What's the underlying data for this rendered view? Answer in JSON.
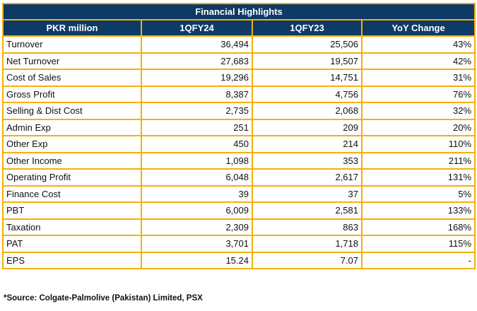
{
  "table": {
    "title": "Financial Highlights",
    "headers": [
      "PKR million",
      "1QFY24",
      "1QFY23",
      "YoY Change"
    ],
    "rows": [
      {
        "label": "Turnover",
        "fy24": "36,494",
        "fy23": "25,506",
        "yoy": "43%"
      },
      {
        "label": "Net Turnover",
        "fy24": "27,683",
        "fy23": "19,507",
        "yoy": "42%"
      },
      {
        "label": "Cost of Sales",
        "fy24": "19,296",
        "fy23": "14,751",
        "yoy": "31%"
      },
      {
        "label": "Gross Profit",
        "fy24": "8,387",
        "fy23": "4,756",
        "yoy": "76%"
      },
      {
        "label": "Selling & Dist Cost",
        "fy24": "2,735",
        "fy23": "2,068",
        "yoy": "32%"
      },
      {
        "label": "Admin Exp",
        "fy24": "251",
        "fy23": "209",
        "yoy": "20%"
      },
      {
        "label": "Other Exp",
        "fy24": "450",
        "fy23": "214",
        "yoy": "110%"
      },
      {
        "label": "Other Income",
        "fy24": "1,098",
        "fy23": "353",
        "yoy": "211%"
      },
      {
        "label": "Operating Profit",
        "fy24": "6,048",
        "fy23": "2,617",
        "yoy": "131%"
      },
      {
        "label": "Finance Cost",
        "fy24": "39",
        "fy23": "37",
        "yoy": "5%"
      },
      {
        "label": "PBT",
        "fy24": "6,009",
        "fy23": "2,581",
        "yoy": "133%"
      },
      {
        "label": "Taxation",
        "fy24": "2,309",
        "fy23": "863",
        "yoy": "168%"
      },
      {
        "label": "PAT",
        "fy24": "3,701",
        "fy23": "1,718",
        "yoy": "115%"
      },
      {
        "label": "EPS",
        "fy24": "15.24",
        "fy23": "7.07",
        "yoy": "-"
      }
    ]
  },
  "source_note": "*Source: Colgate-Palmolive (Pakistan) Limited, PSX",
  "colors": {
    "header_bg": "#0e3a66",
    "border": "#f2b10b"
  }
}
